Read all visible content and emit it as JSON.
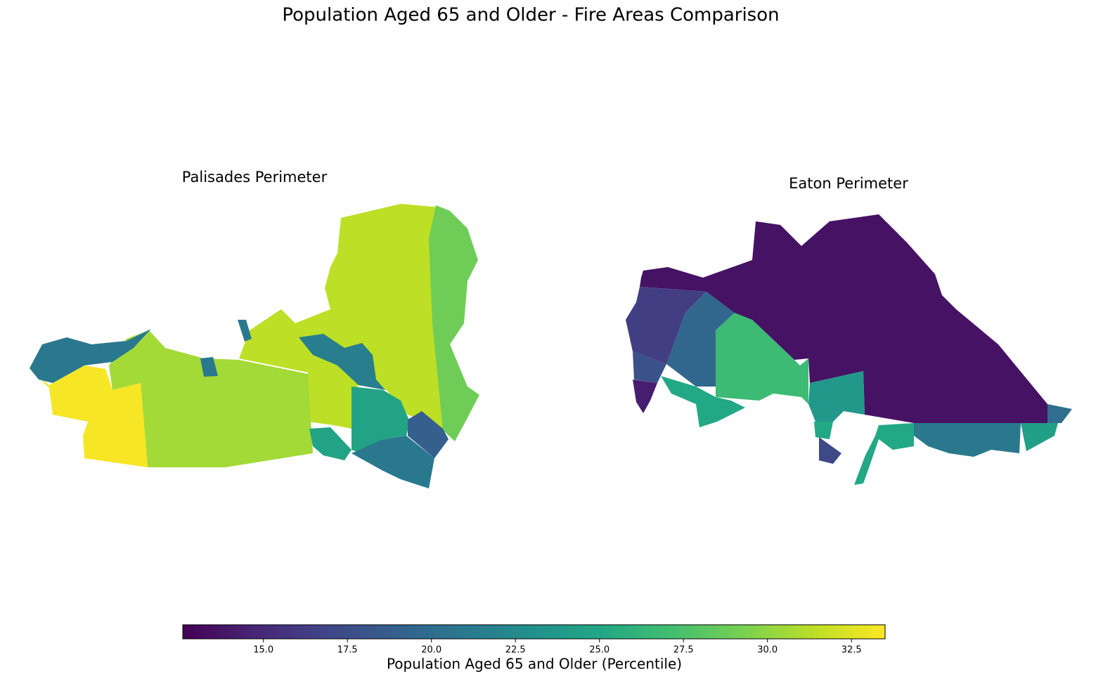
{
  "title": "Population Aged 65 and Older - Fire Areas Comparison",
  "maps": [
    {
      "title": "Palisades Perimeter",
      "values": [
        33.3,
        30.6,
        31.4,
        28.9,
        21.0,
        21.5,
        24.7,
        18.9,
        21.0
      ]
    },
    {
      "title": "Eaton Perimeter",
      "values": [
        13.6,
        16.4,
        19.5,
        26.8,
        23.7,
        21.0,
        20.1,
        14.3,
        25.1,
        17.2,
        17.8,
        24.3
      ]
    }
  ],
  "colorbar": {
    "label": "Population Aged 65 and Older (Percentile)",
    "colormap": "viridis",
    "lim": [
      12.6,
      33.5
    ],
    "ticks": [
      {
        "value": 15,
        "label": "15.0"
      },
      {
        "value": 17.5,
        "label": "17.5"
      },
      {
        "value": 20,
        "label": "20.0"
      },
      {
        "value": 22.5,
        "label": "22.5"
      },
      {
        "value": 25,
        "label": "25.0"
      },
      {
        "value": 27.5,
        "label": "27.5"
      },
      {
        "value": 30,
        "label": "30.0"
      },
      {
        "value": 32.5,
        "label": "32.5"
      }
    ]
  }
}
